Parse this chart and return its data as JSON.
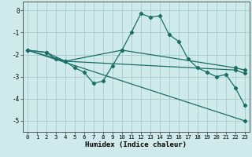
{
  "xlabel": "Humidex (Indice chaleur)",
  "ylabel": "",
  "background_color": "#ceeaea",
  "grid_color": "#aed0d0",
  "line_color": "#1a6e65",
  "xlim": [
    -0.5,
    23.5
  ],
  "ylim": [
    -5.5,
    0.4
  ],
  "yticks": [
    0,
    -1,
    -2,
    -3,
    -4,
    -5
  ],
  "xticks": [
    0,
    1,
    2,
    3,
    4,
    5,
    6,
    7,
    8,
    9,
    10,
    11,
    12,
    13,
    14,
    15,
    16,
    17,
    18,
    19,
    20,
    21,
    22,
    23
  ],
  "lines": [
    {
      "x": [
        0,
        2,
        3,
        4,
        5,
        6,
        7,
        8,
        9,
        10,
        11,
        12,
        13,
        14,
        15,
        16,
        17,
        18,
        19,
        20,
        21,
        22,
        23
      ],
      "y": [
        -1.8,
        -1.9,
        -2.2,
        -2.3,
        -2.6,
        -2.8,
        -3.3,
        -3.2,
        -2.5,
        -1.8,
        -1.0,
        -0.15,
        -0.3,
        -0.25,
        -1.1,
        -1.4,
        -2.2,
        -2.6,
        -2.8,
        -3.0,
        -2.9,
        -3.5,
        -4.3
      ]
    },
    {
      "x": [
        0,
        2,
        4,
        10,
        22,
        23
      ],
      "y": [
        -1.8,
        -1.9,
        -2.3,
        -1.8,
        -2.6,
        -2.7
      ]
    },
    {
      "x": [
        0,
        4,
        22,
        23
      ],
      "y": [
        -1.8,
        -2.3,
        -2.7,
        -2.85
      ]
    },
    {
      "x": [
        0,
        23
      ],
      "y": [
        -1.8,
        -5.0
      ]
    }
  ]
}
